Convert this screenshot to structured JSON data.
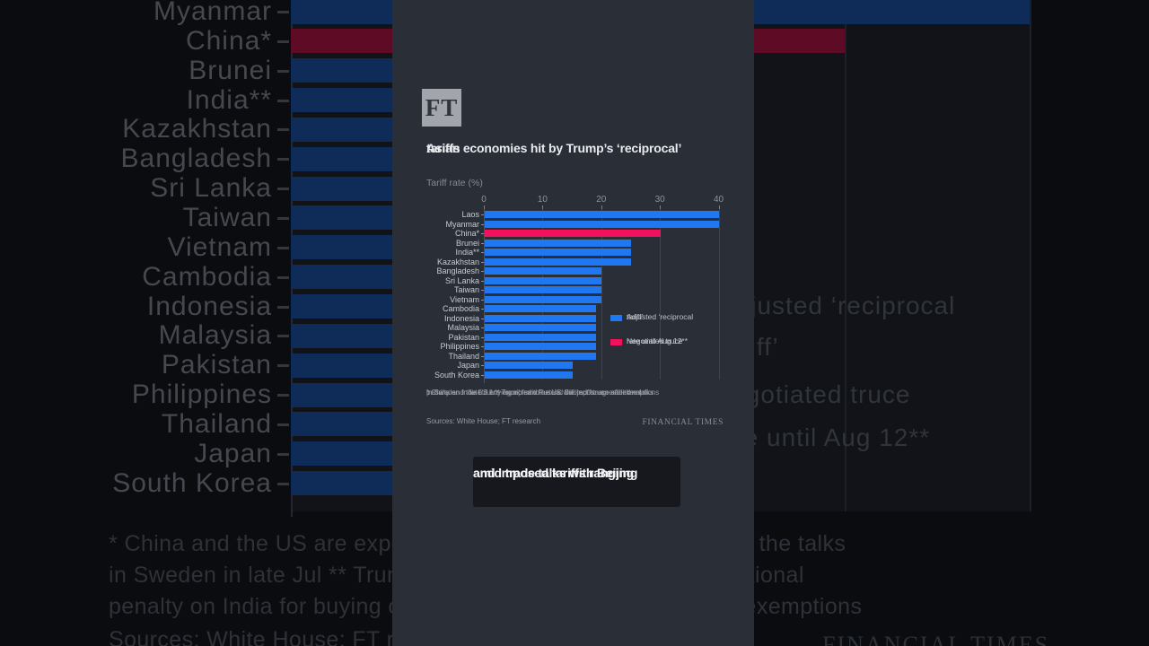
{
  "chart_data": {
    "type": "bar",
    "orientation": "horizontal",
    "title": "Asian economies hit by Trump’s ‘reciprocal’ tariffs",
    "subtitle": "Tariff rate (%)",
    "categories": [
      "Laos",
      "Myanmar",
      "China*",
      "Brunei",
      "India**",
      "Kazakhstan",
      "Bangladesh",
      "Sri Lanka",
      "Taiwan",
      "Vietnam",
      "Cambodia",
      "Indonesia",
      "Malaysia",
      "Pakistan",
      "Philippines",
      "Thailand",
      "Japan",
      "South Korea"
    ],
    "values": [
      40,
      40,
      30,
      25,
      25,
      25,
      20,
      20,
      20,
      20,
      19,
      19,
      19,
      19,
      19,
      19,
      15,
      15
    ],
    "highlight_category": "China*",
    "xticks": [
      0,
      10,
      20,
      30,
      40
    ],
    "xlim": [
      0,
      40
    ],
    "grid": "vertical",
    "legend_position": "right-middle",
    "legend": [
      {
        "label": "Adjusted ‘reciprocal tariff’",
        "label_lines": [
          "Adjusted ‘reciprocal",
          "tariff’"
        ],
        "color": "#1f78f2"
      },
      {
        "label": "Negotiated truce rate until Aug 12**",
        "label_lines": [
          "Negotiated truce",
          "rate until Aug 12**"
        ],
        "color": "#f2115c"
      }
    ]
  },
  "panel": {
    "logo": "FT",
    "title_lines": [
      "Asian economies hit by Trump’s ‘reciprocal’",
      "tariffs"
    ],
    "subtitle": "Tariff rate (%)",
    "footnote_lines": [
      "* China and the US are expected to extend the tariff truce after the talks",
      "in Sweden in late Jul  ** Trump said the US will impose an additional",
      "penalty on India for buying oil from Russia. Subject to agreed exemptions"
    ],
    "sources": "Sources: White House; FT research",
    "brand": "FINANCIAL TIMES"
  },
  "caption": {
    "lines": [
      "amid trade talks with Beijing",
      "and imposed tariffs ranging"
    ]
  },
  "colors": {
    "bar_blue": "#1f78f2",
    "bar_pink": "#f2115c",
    "bg_bar_blue": "#0f2b57",
    "bg_bar_red": "#5e0c26",
    "panel_bg": "#2a2e37"
  }
}
